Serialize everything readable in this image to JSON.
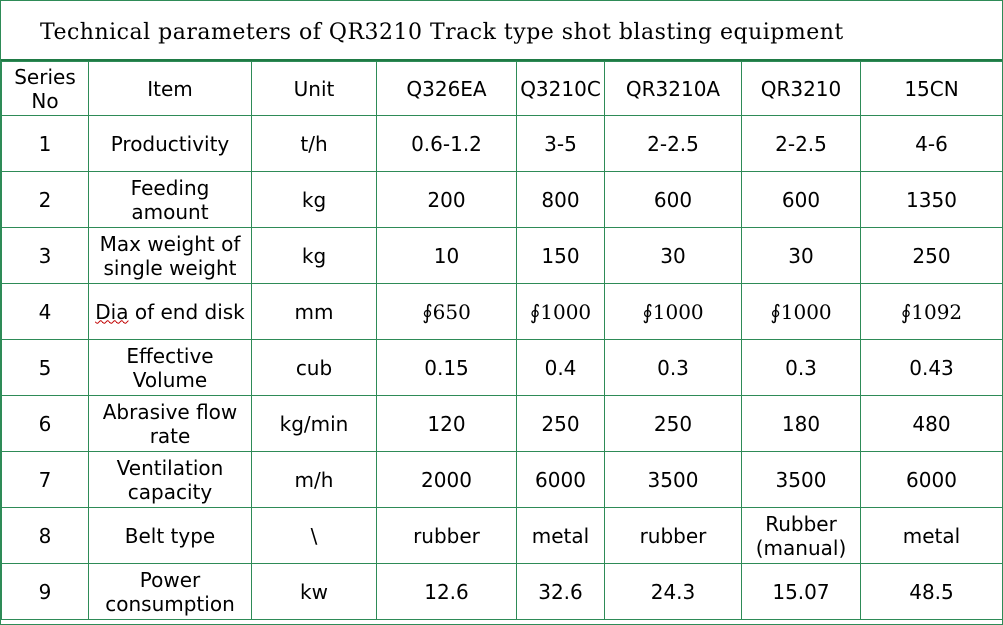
{
  "title": "Technical parameters of QR3210 Track type shot blasting equipment",
  "table": {
    "headers": [
      "Series No",
      "Item",
      "Unit",
      "Q326EA",
      "Q3210C",
      "QR3210A",
      "QR3210",
      "15CN"
    ],
    "rows": [
      [
        "1",
        "Productivity",
        "t/h",
        "0.6-1.2",
        "3-5",
        "2-2.5",
        "2-2.5",
        "4-6"
      ],
      [
        "2",
        "Feeding amount",
        "kg",
        "200",
        "800",
        "600",
        "600",
        "1350"
      ],
      [
        "3",
        "Max weight of single weight",
        "kg",
        "10",
        "150",
        "30",
        "30",
        "250"
      ],
      [
        "4",
        "Dia of end disk",
        "mm",
        "∮650",
        "∮1000",
        "∮1000",
        "∮1000",
        "∮1092"
      ],
      [
        "5",
        "Effective Volume",
        "cub",
        "0.15",
        "0.4",
        "0.3",
        "0.3",
        "0.43"
      ],
      [
        "6",
        "Abrasive flow rate",
        "kg/min",
        "120",
        "250",
        "250",
        "180",
        "480"
      ],
      [
        "7",
        "Ventilation capacity",
        "m/h",
        "2000",
        "6000",
        "3500",
        "3500",
        "6000"
      ],
      [
        "8",
        "Belt type",
        "\\",
        "rubber",
        "metal",
        "rubber",
        "Rubber (manual)",
        "metal"
      ],
      [
        "9",
        "Power consumption",
        "kw",
        "12.6",
        "32.6",
        "24.3",
        "15.07",
        "48.5"
      ]
    ]
  }
}
